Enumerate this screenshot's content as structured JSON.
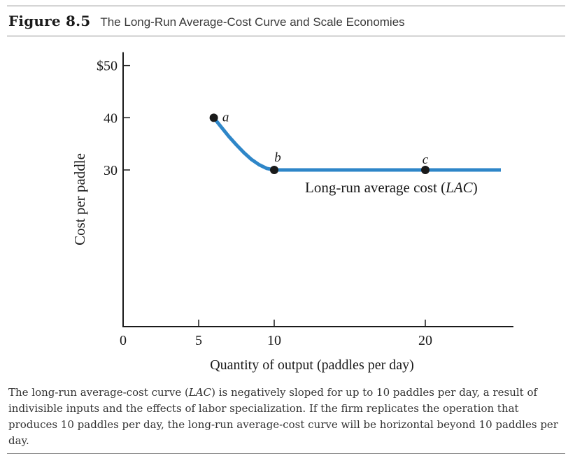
{
  "figure": {
    "label": "Figure 8.5",
    "title": "The Long-Run Average-Cost Curve and Scale Economies"
  },
  "chart_data": {
    "type": "line",
    "xlabel": "Quantity of output (paddles per day)",
    "ylabel": "Cost per paddle",
    "xlim": [
      0,
      25
    ],
    "ylim": [
      0,
      50
    ],
    "x_ticks": [
      {
        "value": 0,
        "label": "0"
      },
      {
        "value": 5,
        "label": "5"
      },
      {
        "value": 10,
        "label": "10"
      },
      {
        "value": 20,
        "label": "20"
      }
    ],
    "y_ticks": [
      {
        "value": 30,
        "label": "30"
      },
      {
        "value": 40,
        "label": "40"
      },
      {
        "value": 50,
        "label": "$50"
      }
    ],
    "grid": false,
    "series": [
      {
        "name": "Long-run average cost (LAC)",
        "color": "#2e86c8",
        "x": [
          6,
          6.5,
          7,
          7.5,
          8,
          8.5,
          9,
          9.5,
          10,
          15,
          20,
          25
        ],
        "y": [
          40,
          38.2,
          36.4,
          34.8,
          33.3,
          32.0,
          31.0,
          30.3,
          30,
          30,
          30,
          30
        ]
      }
    ],
    "points": [
      {
        "label": "a",
        "x": 6,
        "y": 40
      },
      {
        "label": "b",
        "x": 10,
        "y": 30
      },
      {
        "label": "c",
        "x": 20,
        "y": 30
      }
    ],
    "curve_label": {
      "prefix": "Long-run average cost (",
      "italic": "LAC",
      "suffix": ")"
    }
  },
  "caption": {
    "part1": "The long-run average-cost curve (",
    "italic": "LAC",
    "part2": ") is negatively sloped for up to 10 paddles per day, a result of indivisible inputs and the effects of labor specialization. If the firm replicates the operation that produces 10 paddles per day, the long-run average-cost curve will be horizontal beyond 10 paddles per day."
  }
}
